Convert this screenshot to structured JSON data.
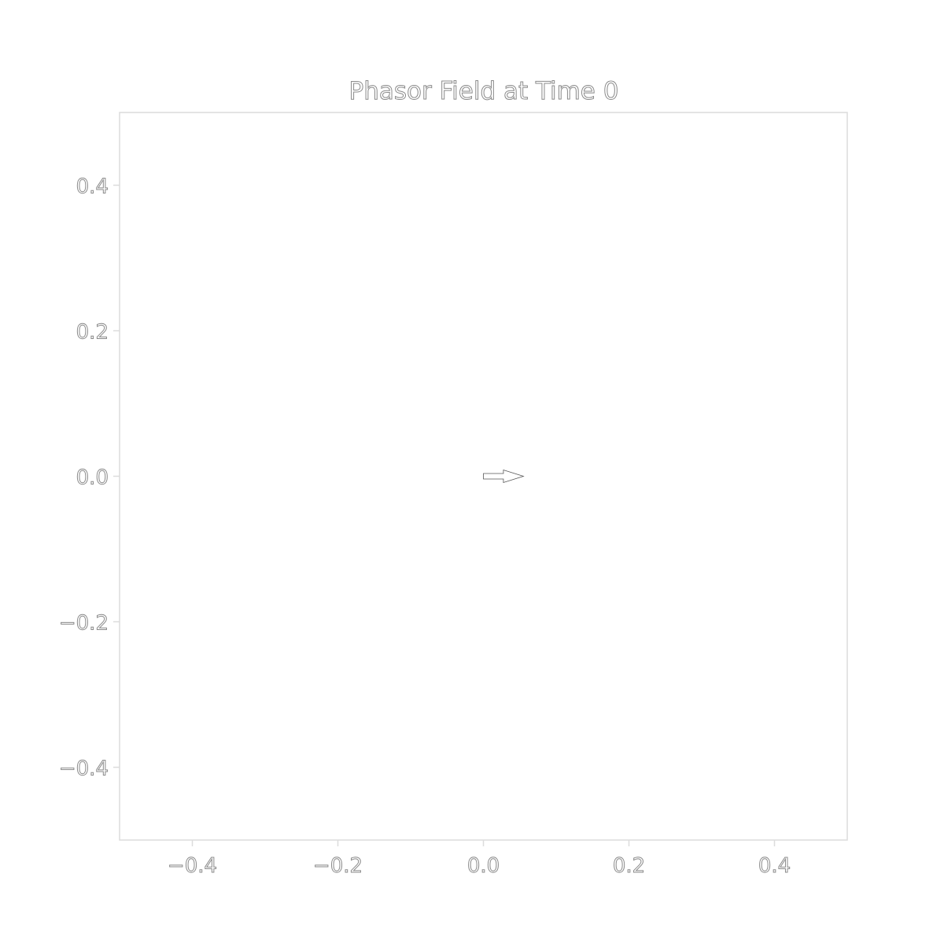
{
  "chart_data": {
    "type": "quiver",
    "title": "Phasor Field at Time 0",
    "xlabel": "",
    "ylabel": "",
    "xlim": [
      -0.5,
      0.5
    ],
    "ylim": [
      -0.5,
      0.5
    ],
    "x_ticks": [
      -0.4,
      -0.2,
      0.0,
      0.2,
      0.4
    ],
    "y_ticks": [
      -0.4,
      -0.2,
      0.0,
      0.2,
      0.4
    ],
    "x_tick_labels": [
      "−0.4",
      "−0.2",
      "0.0",
      "0.2",
      "0.4"
    ],
    "y_tick_labels": [
      "−0.4",
      "−0.2",
      "0.0",
      "0.2",
      "0.4"
    ],
    "grid": false,
    "arrows": [
      {
        "x": 0.0,
        "y": 0.0,
        "u": 0.055,
        "v": 0.0
      }
    ],
    "colors": {
      "frame": "#dcdcdc",
      "text": "#8a8a8a",
      "arrow_edge": "#555555",
      "arrow_fill": "#ffffff"
    }
  }
}
